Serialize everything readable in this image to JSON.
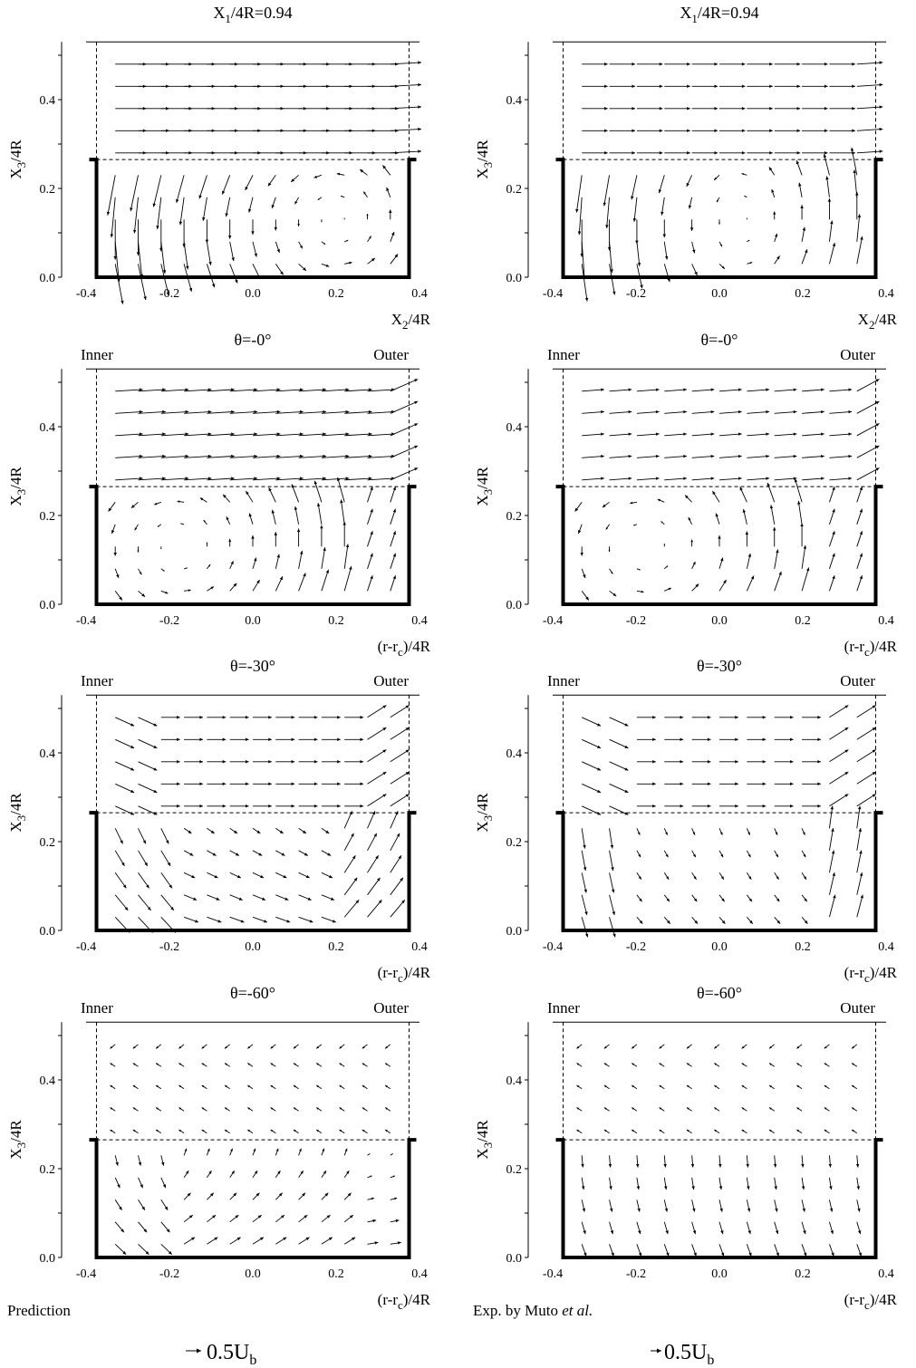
{
  "figure": {
    "left_label": "Prediction",
    "right_label_main": "Exp. by  Muto ",
    "right_label_ital": "et  al.",
    "scale_label_left": "0.5U",
    "scale_label_right": "0.5U",
    "scale_sub": "b"
  },
  "chart_data": [
    {
      "type": "vector-field",
      "id": "p1",
      "title_main": "X",
      "title_sub": "1",
      "title_rest": "/4R=0.94",
      "ylabel_main": "X",
      "ylabel_sub": "3",
      "ylabel_rest": "/4R",
      "xlabel_main": "X",
      "xlabel_sub": "2",
      "xlabel_rest": "/4R",
      "inner": "",
      "outer": "",
      "xlim": [
        -0.4,
        0.4
      ],
      "ylim": [
        0.0,
        0.53
      ],
      "xticks": [
        "-0.4",
        "-0.2",
        "0.0",
        "0.2",
        "0.4"
      ],
      "yticks": [
        "0.0",
        "0.2",
        "0.4"
      ],
      "duct": [
        -0.375,
        0.375
      ],
      "duct_top": 0.265,
      "source": "prediction",
      "mode": "straight"
    },
    {
      "type": "vector-field",
      "id": "e1",
      "title_main": "X",
      "title_sub": "1",
      "title_rest": "/4R=0.94",
      "ylabel_main": "X",
      "ylabel_sub": "3",
      "ylabel_rest": "/4R",
      "xlabel_main": "X",
      "xlabel_sub": "2",
      "xlabel_rest": "/4R",
      "inner": "",
      "outer": "",
      "xlim": [
        -0.4,
        0.4
      ],
      "ylim": [
        0.0,
        0.53
      ],
      "xticks": [
        "-0.4",
        "-0.2",
        "0.0",
        "0.2",
        "0.4"
      ],
      "yticks": [
        "0.0",
        "0.2",
        "0.4"
      ],
      "duct": [
        -0.375,
        0.375
      ],
      "duct_top": 0.265,
      "source": "experiment",
      "mode": "straight"
    },
    {
      "type": "vector-field",
      "id": "p2",
      "title_main": "θ=-0°",
      "title_sub": "",
      "title_rest": "",
      "ylabel_main": "X",
      "ylabel_sub": "3",
      "ylabel_rest": "/4R",
      "xlabel_main": "(r-r",
      "xlabel_sub": "c",
      "xlabel_rest": ")/4R",
      "inner": "Inner",
      "outer": "Outer",
      "xlim": [
        -0.4,
        0.4
      ],
      "ylim": [
        0.0,
        0.53
      ],
      "xticks": [
        "-0.4",
        "-0.2",
        "0.0",
        "0.2",
        "0.4"
      ],
      "yticks": [
        "0.0",
        "0.2",
        "0.4"
      ],
      "duct": [
        -0.375,
        0.375
      ],
      "duct_top": 0.265,
      "source": "prediction",
      "mode": "bend0"
    },
    {
      "type": "vector-field",
      "id": "e2",
      "title_main": "θ=-0°",
      "title_sub": "",
      "title_rest": "",
      "ylabel_main": "X",
      "ylabel_sub": "3",
      "ylabel_rest": "/4R",
      "xlabel_main": "(r-r",
      "xlabel_sub": "c",
      "xlabel_rest": ")/4R",
      "inner": "Inner",
      "outer": "Outer",
      "xlim": [
        -0.4,
        0.4
      ],
      "ylim": [
        0.0,
        0.53
      ],
      "xticks": [
        "-0.4",
        "-0.2",
        "0.0",
        "0.2",
        "0.4"
      ],
      "yticks": [
        "0.0",
        "0.2",
        "0.4"
      ],
      "duct": [
        -0.375,
        0.375
      ],
      "duct_top": 0.265,
      "source": "experiment",
      "mode": "bend0"
    },
    {
      "type": "vector-field",
      "id": "p3",
      "title_main": "θ=-30°",
      "title_sub": "",
      "title_rest": "",
      "ylabel_main": "X",
      "ylabel_sub": "3",
      "ylabel_rest": "/4R",
      "xlabel_main": "(r-r",
      "xlabel_sub": "c",
      "xlabel_rest": ")/4R",
      "inner": "Inner",
      "outer": "Outer",
      "xlim": [
        -0.4,
        0.4
      ],
      "ylim": [
        0.0,
        0.53
      ],
      "xticks": [
        "-0.4",
        "-0.2",
        "0.0",
        "0.2",
        "0.4"
      ],
      "yticks": [
        "0.0",
        "0.2",
        "0.4"
      ],
      "duct": [
        -0.375,
        0.375
      ],
      "duct_top": 0.265,
      "source": "prediction",
      "mode": "bend30"
    },
    {
      "type": "vector-field",
      "id": "e3",
      "title_main": "θ=-30°",
      "title_sub": "",
      "title_rest": "",
      "ylabel_main": "X",
      "ylabel_sub": "3",
      "ylabel_rest": "/4R",
      "xlabel_main": "(r-r",
      "xlabel_sub": "c",
      "xlabel_rest": ")/4R",
      "inner": "Inner",
      "outer": "Outer",
      "xlim": [
        -0.4,
        0.4
      ],
      "ylim": [
        0.0,
        0.53
      ],
      "xticks": [
        "-0.4",
        "-0.2",
        "0.0",
        "0.2",
        "0.4"
      ],
      "yticks": [
        "0.0",
        "0.2",
        "0.4"
      ],
      "duct": [
        -0.375,
        0.375
      ],
      "duct_top": 0.265,
      "source": "experiment",
      "mode": "bend30"
    },
    {
      "type": "vector-field",
      "id": "p4",
      "title_main": "θ=-60°",
      "title_sub": "",
      "title_rest": "",
      "ylabel_main": "X",
      "ylabel_sub": "3",
      "ylabel_rest": "/4R",
      "xlabel_main": "(r-r",
      "xlabel_sub": "c",
      "xlabel_rest": ")/4R",
      "inner": "Inner",
      "outer": "Outer",
      "xlim": [
        -0.4,
        0.4
      ],
      "ylim": [
        0.0,
        0.53
      ],
      "xticks": [
        "-0.4",
        "-0.2",
        "0.0",
        "0.2",
        "0.4"
      ],
      "yticks": [
        "0.0",
        "0.2",
        "0.4"
      ],
      "duct": [
        -0.375,
        0.375
      ],
      "duct_top": 0.265,
      "source": "prediction",
      "mode": "bend60"
    },
    {
      "type": "vector-field",
      "id": "e4",
      "title_main": "θ=-60°",
      "title_sub": "",
      "title_rest": "",
      "ylabel_main": "X",
      "ylabel_sub": "3",
      "ylabel_rest": "/4R",
      "xlabel_main": "(r-r",
      "xlabel_sub": "c",
      "xlabel_rest": ")/4R",
      "inner": "Inner",
      "outer": "Outer",
      "xlim": [
        -0.4,
        0.4
      ],
      "ylim": [
        0.0,
        0.53
      ],
      "xticks": [
        "-0.4",
        "-0.2",
        "0.0",
        "0.2",
        "0.4"
      ],
      "yticks": [
        "0.0",
        "0.2",
        "0.4"
      ],
      "duct": [
        -0.375,
        0.375
      ],
      "duct_top": 0.265,
      "source": "experiment",
      "mode": "bend60"
    }
  ]
}
